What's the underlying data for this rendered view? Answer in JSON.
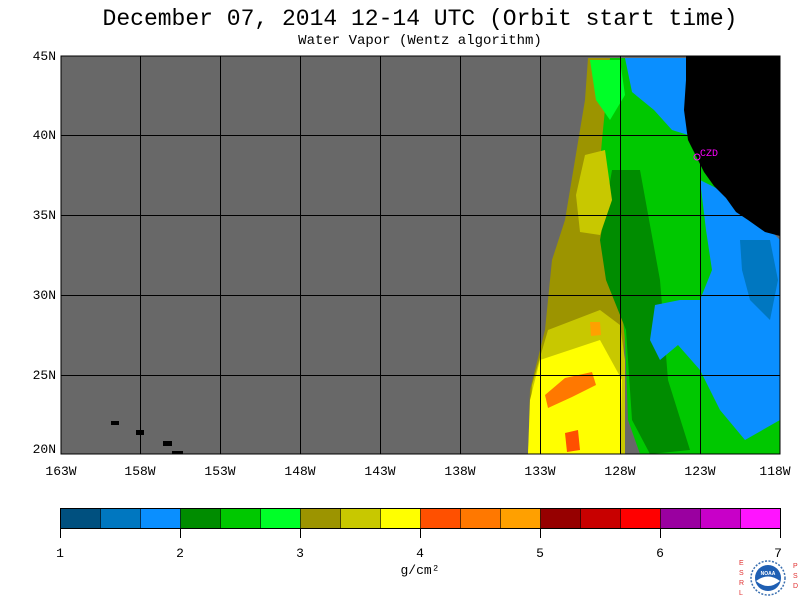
{
  "title": "December 07, 2014  12-14 UTC  (Orbit start time)",
  "subtitle": "Water Vapor (Wentz algorithm)",
  "station_label": "CZD",
  "lat_labels": [
    "45N",
    "40N",
    "35N",
    "30N",
    "25N",
    "20N"
  ],
  "lat_values": [
    45,
    40,
    35,
    30,
    25,
    20
  ],
  "lon_labels": [
    "163W",
    "158W",
    "153W",
    "148W",
    "143W",
    "138W",
    "133W",
    "128W",
    "123W",
    "118W"
  ],
  "lon_values": [
    -163,
    -158,
    -153,
    -148,
    -143,
    -138,
    -133,
    -128,
    -123,
    -118
  ],
  "colorbar": {
    "ticks": [
      "1",
      "2",
      "3",
      "4",
      "5",
      "6",
      "7"
    ],
    "units": "g/cm²",
    "colors": [
      "#00507f",
      "#0077c0",
      "#0a8fff",
      "#008c00",
      "#00c800",
      "#00ff28",
      "#9c9400",
      "#c8c800",
      "#ffff00",
      "#ff5000",
      "#ff7800",
      "#ffa000",
      "#960000",
      "#c80000",
      "#ff0000",
      "#9a00a0",
      "#c800c8",
      "#ff14ff"
    ]
  },
  "colors": {
    "no_data": "#686868",
    "land": "#000000",
    "station": "#ff00ff"
  },
  "logo_text": {
    "left": "ESRL",
    "right": "PSD",
    "center": "NOAA"
  }
}
